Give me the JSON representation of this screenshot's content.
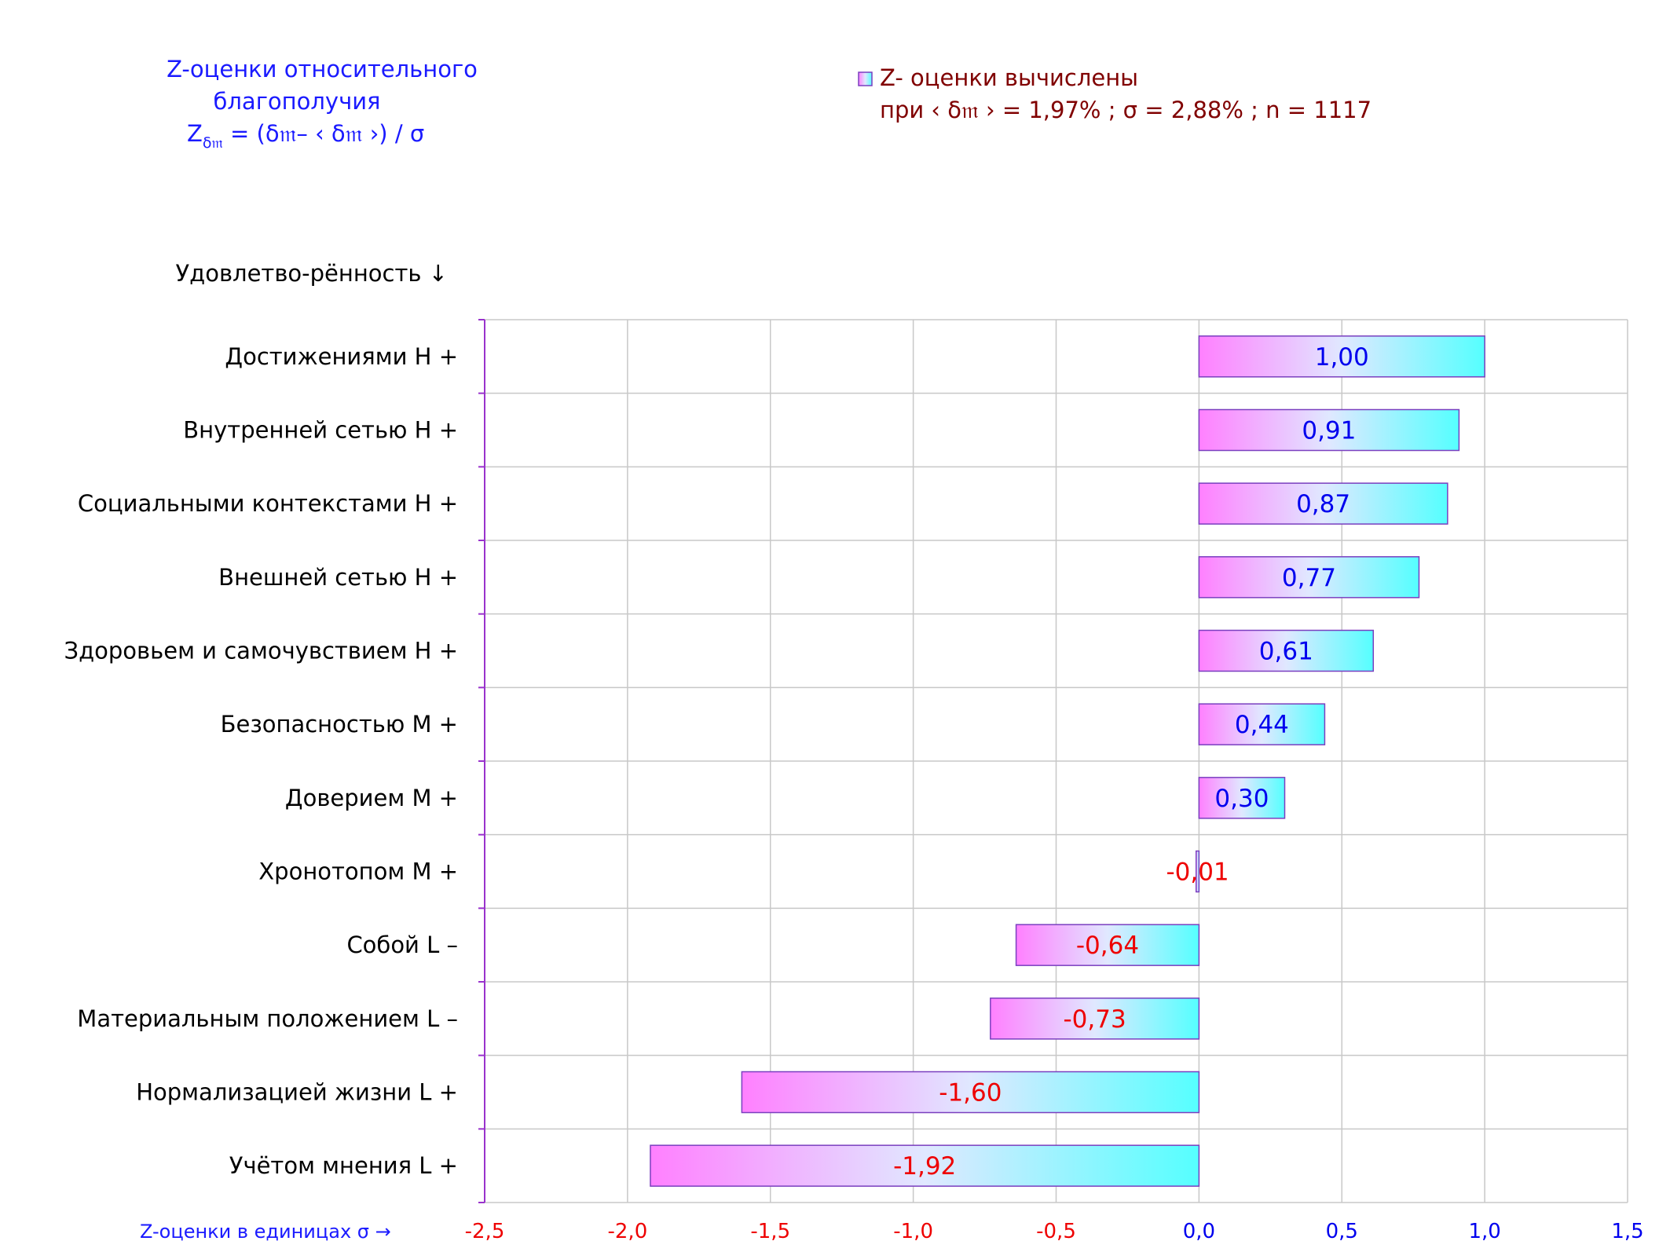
{
  "title": {
    "line1": "Z-оценки  относительного",
    "line2": "благополучия",
    "formula_z": "Z",
    "formula_sub": "δ𝔪",
    "formula_rest": " = (δ𝔪– ‹ δ𝔪 ›)  / σ"
  },
  "legend": {
    "line1": "Z- оценки вычислены",
    "line2": "при ‹ δ𝔪 ›  = 1,97% ; σ = 2,88% ; n = 1117"
  },
  "y_axis_header": "Удовлетво-рённость ↓",
  "x_axis_caption": "Z-оценки в единицах σ →",
  "colors": {
    "gradient_start": "#ff80ff",
    "gradient_mid": "#e0e8ff",
    "gradient_end": "#55ffff",
    "bar_border": "#7a3fbf",
    "positive_text": "#0000ee",
    "negative_text": "#ee0000",
    "grid": "#c8c8c8",
    "axis": "#9933cc"
  },
  "chart_data": {
    "type": "bar",
    "orientation": "horizontal",
    "categories": [
      "Достижениями  Н +",
      "Внутренней сетью  Н +",
      "Социальными контекстами  Н +",
      "Внешней сетью  Н +",
      "Здоровьем и самочувствием  Н +",
      "Безопасностью  М +",
      "Доверием  М +",
      "Хронотопом  М +",
      "Собой  L –",
      "Материальным положением  L –",
      "Нормализацией жизни  L +",
      "Учётом мнения  L +"
    ],
    "values": [
      1.0,
      0.91,
      0.87,
      0.77,
      0.61,
      0.44,
      0.3,
      -0.01,
      -0.64,
      -0.73,
      -1.6,
      -1.92
    ],
    "value_labels": [
      "1,00",
      "0,91",
      "0,87",
      "0,77",
      "0,61",
      "0,44",
      "0,30",
      "-0,01",
      "-0,64",
      "-0,73",
      "-1,60",
      "-1,92"
    ],
    "xlim": [
      -2.5,
      1.5
    ],
    "x_ticks": [
      -2.5,
      -2.0,
      -1.5,
      -1.0,
      -0.5,
      0.0,
      0.5,
      1.0,
      1.5
    ],
    "x_tick_labels": [
      "-2,5",
      "-2,0",
      "-1,5",
      "-1,0",
      "-0,5",
      "0,0",
      "0,5",
      "1,0",
      "1,5"
    ],
    "grid": true,
    "legend_position": "top"
  }
}
